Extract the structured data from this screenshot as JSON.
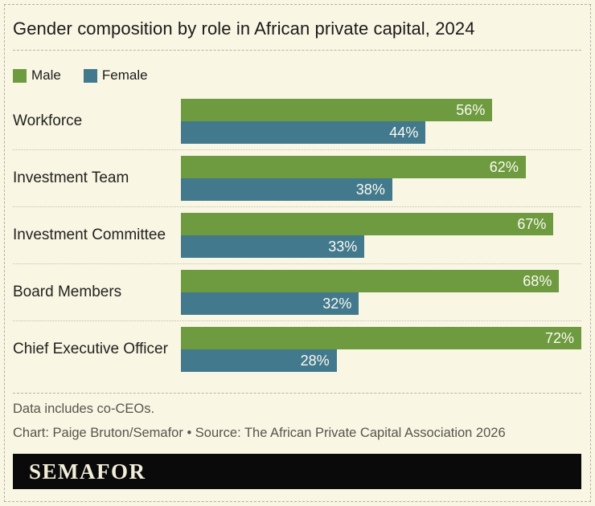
{
  "chart_data": {
    "type": "bar",
    "orientation": "horizontal",
    "title": "Gender composition by role in African private capital, 2024",
    "categories": [
      "Workforce",
      "Investment Team",
      "Investment Committee",
      "Board Members",
      "Chief Executive Officer"
    ],
    "series": [
      {
        "name": "Male",
        "color": "#6e9a40",
        "values": [
          56,
          62,
          67,
          68,
          72
        ]
      },
      {
        "name": "Female",
        "color": "#42798d",
        "values": [
          44,
          38,
          33,
          32,
          28
        ]
      }
    ],
    "value_suffix": "%",
    "xlim": [
      0,
      72
    ],
    "legend_position": "top-left",
    "grid": false
  },
  "footer": {
    "note": "Data includes co-CEOs.",
    "credit": "Chart: Paige Bruton/Semafor • Source: The African Private Capital Association 2026",
    "logo": "SEMAFOR"
  },
  "theme": {
    "background": "#faf6e4",
    "border_color": "#b1b0a4",
    "text_color": "#1b1b1b",
    "muted_text_color": "#56554d",
    "bar_label_color": "#fcfbf2",
    "logo_bg": "#0a0a0a",
    "logo_text_color": "#f3eeda"
  }
}
